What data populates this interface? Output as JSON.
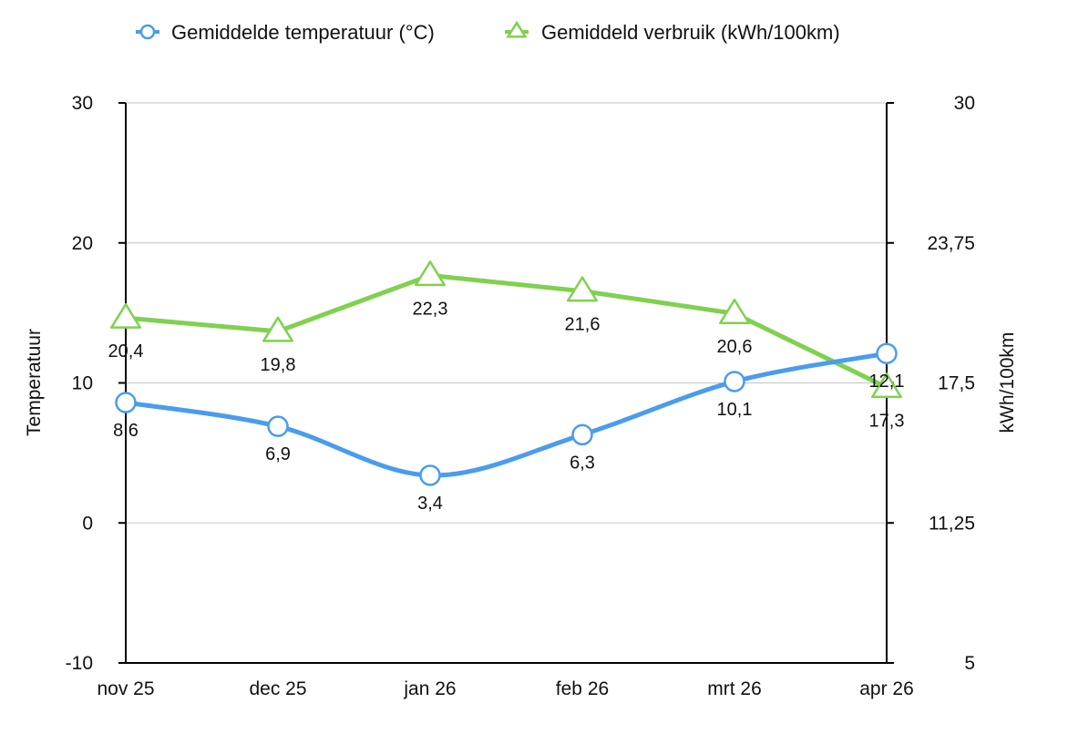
{
  "chart_data": {
    "type": "line",
    "categories": [
      "nov 25",
      "dec 25",
      "jan 26",
      "feb 26",
      "mrt 26",
      "apr 26"
    ],
    "series": [
      {
        "name": "Gemiddelde temperatuur (°C)",
        "axis": "left",
        "marker": "circle",
        "color": "#4a9ced",
        "values": [
          8.6,
          6.9,
          3.4,
          6.3,
          10.1,
          12.1
        ],
        "labels": [
          "8,6",
          "6,9",
          "3,4",
          "6,3",
          "10,1",
          "12,1"
        ]
      },
      {
        "name": "Gemiddeld verbruik (kWh/100km)",
        "axis": "right",
        "marker": "triangle",
        "color": "#7fd14f",
        "values": [
          20.4,
          19.8,
          22.3,
          21.6,
          20.6,
          17.3
        ],
        "labels": [
          "20,4",
          "19,8",
          "22,3",
          "21,6",
          "20,6",
          "17,3"
        ]
      }
    ],
    "y_left": {
      "label": "Temperatuur",
      "range": [
        -10,
        30
      ],
      "ticks": [
        -10,
        0,
        10,
        20,
        30
      ],
      "tick_labels": [
        "-10",
        "0",
        "10",
        "20",
        "30"
      ]
    },
    "y_right": {
      "label": "kWh/100km",
      "range": [
        5,
        30
      ],
      "ticks": [
        5,
        11.25,
        17.5,
        23.75,
        30
      ],
      "tick_labels": [
        "5",
        "11,25",
        "17,5",
        "23,75",
        "30"
      ]
    },
    "grid": true,
    "legend": "top-center"
  }
}
